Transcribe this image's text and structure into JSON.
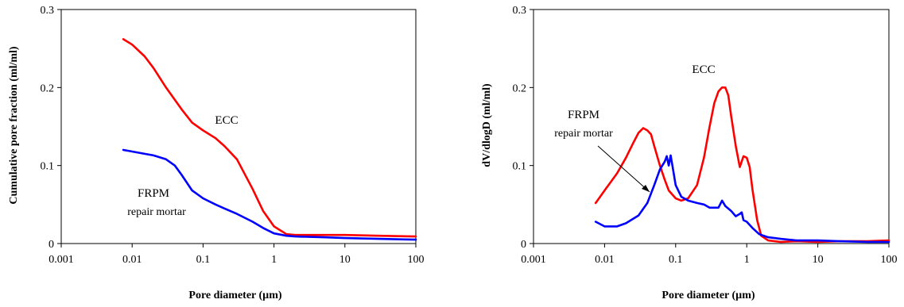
{
  "chart_data": [
    {
      "type": "line",
      "title": "",
      "xlabel": "Pore diameter (µm)",
      "ylabel": "Cumulative pore fraction (ml/ml)",
      "x_scale": "log",
      "xlim": [
        0.001,
        100
      ],
      "ylim": [
        0,
        0.3
      ],
      "x_ticks": [
        "0.001",
        "0.01",
        "0.1",
        "1",
        "10",
        "100"
      ],
      "y_ticks": [
        "0",
        "0.1",
        "0.2",
        "0.3"
      ],
      "grid": false,
      "annotations": [
        "ECC",
        "FRPM",
        "repair mortar"
      ],
      "series": [
        {
          "name": "ECC",
          "color": "#ff0000",
          "x": [
            0.0075,
            0.01,
            0.015,
            0.02,
            0.03,
            0.05,
            0.07,
            0.1,
            0.15,
            0.2,
            0.3,
            0.5,
            0.7,
            1.0,
            1.5,
            2,
            5,
            10,
            30,
            100
          ],
          "y": [
            0.262,
            0.255,
            0.24,
            0.225,
            0.2,
            0.172,
            0.155,
            0.145,
            0.135,
            0.125,
            0.108,
            0.07,
            0.042,
            0.022,
            0.012,
            0.011,
            0.011,
            0.011,
            0.01,
            0.009
          ]
        },
        {
          "name": "FRPM repair mortar",
          "color": "#0000ff",
          "x": [
            0.0075,
            0.01,
            0.015,
            0.02,
            0.03,
            0.04,
            0.05,
            0.07,
            0.1,
            0.15,
            0.2,
            0.3,
            0.5,
            0.7,
            1.0,
            1.5,
            2,
            5,
            10,
            30,
            100
          ],
          "y": [
            0.12,
            0.118,
            0.115,
            0.113,
            0.108,
            0.1,
            0.088,
            0.068,
            0.058,
            0.05,
            0.045,
            0.038,
            0.028,
            0.02,
            0.013,
            0.01,
            0.009,
            0.008,
            0.007,
            0.006,
            0.005
          ]
        }
      ]
    },
    {
      "type": "line",
      "title": "",
      "xlabel": "Pore diameter (µm)",
      "ylabel": "dV/dlogD (ml/ml)",
      "x_scale": "log",
      "xlim": [
        0.001,
        100
      ],
      "ylim": [
        0,
        0.3
      ],
      "x_ticks": [
        "0.001",
        "0.01",
        "0.1",
        "1",
        "10",
        "100"
      ],
      "y_ticks": [
        "0",
        "0.1",
        "0.2",
        "0.3"
      ],
      "grid": false,
      "annotations": [
        "ECC",
        "FRPM",
        "repair mortar"
      ],
      "series": [
        {
          "name": "ECC",
          "color": "#ff0000",
          "x": [
            0.0075,
            0.01,
            0.015,
            0.02,
            0.025,
            0.03,
            0.035,
            0.04,
            0.045,
            0.05,
            0.06,
            0.07,
            0.08,
            0.1,
            0.12,
            0.15,
            0.2,
            0.25,
            0.3,
            0.35,
            0.4,
            0.45,
            0.5,
            0.55,
            0.6,
            0.7,
            0.8,
            0.9,
            1.0,
            1.1,
            1.2,
            1.4,
            1.6,
            2,
            3,
            5,
            10,
            20,
            50,
            100
          ],
          "y": [
            0.052,
            0.068,
            0.09,
            0.11,
            0.128,
            0.142,
            0.148,
            0.145,
            0.14,
            0.125,
            0.1,
            0.082,
            0.068,
            0.058,
            0.055,
            0.058,
            0.075,
            0.11,
            0.15,
            0.18,
            0.195,
            0.2,
            0.2,
            0.19,
            0.165,
            0.125,
            0.098,
            0.112,
            0.11,
            0.098,
            0.07,
            0.03,
            0.01,
            0.004,
            0.002,
            0.003,
            0.002,
            0.003,
            0.003,
            0.004
          ]
        },
        {
          "name": "FRPM repair mortar",
          "color": "#0000ff",
          "x": [
            0.0075,
            0.01,
            0.015,
            0.02,
            0.03,
            0.04,
            0.05,
            0.06,
            0.07,
            0.075,
            0.08,
            0.085,
            0.09,
            0.1,
            0.12,
            0.15,
            0.2,
            0.25,
            0.3,
            0.4,
            0.45,
            0.5,
            0.6,
            0.7,
            0.8,
            0.85,
            0.9,
            1.0,
            1.2,
            1.5,
            2,
            3,
            5,
            10,
            20,
            50,
            100
          ],
          "y": [
            0.028,
            0.022,
            0.022,
            0.026,
            0.036,
            0.052,
            0.075,
            0.095,
            0.105,
            0.112,
            0.1,
            0.113,
            0.1,
            0.075,
            0.06,
            0.055,
            0.052,
            0.05,
            0.046,
            0.046,
            0.055,
            0.048,
            0.042,
            0.035,
            0.038,
            0.04,
            0.03,
            0.028,
            0.02,
            0.012,
            0.008,
            0.006,
            0.004,
            0.004,
            0.003,
            0.002,
            0.002
          ]
        }
      ]
    }
  ]
}
